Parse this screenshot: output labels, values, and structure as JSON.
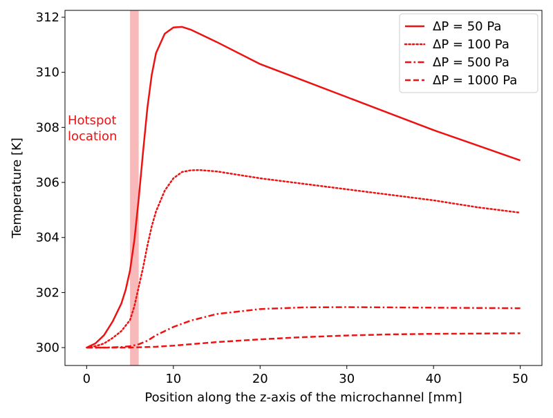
{
  "chart_data": {
    "type": "line",
    "title": "",
    "xlabel": "Position along the z-axis of the microchannel [mm]",
    "ylabel": "Temperature [K]",
    "xlim": [
      -2.5,
      52.5
    ],
    "ylim": [
      299.35,
      312.25
    ],
    "xticks": [
      0,
      10,
      20,
      30,
      40,
      50
    ],
    "yticks": [
      300,
      302,
      304,
      306,
      308,
      310,
      312
    ],
    "line_color": "#ee1111",
    "band": {
      "x_start": 5,
      "x_end": 6,
      "color": "#f08080",
      "label": "Hotspot\nlocation"
    },
    "legend_position": "top-right",
    "series": [
      {
        "name": "ΔP = 50 Pa",
        "style": "solid",
        "x": [
          0,
          1,
          2,
          3,
          4,
          4.5,
          5,
          5.5,
          6,
          6.5,
          7,
          7.5,
          8,
          9,
          10,
          11,
          12,
          15,
          20,
          25,
          30,
          35,
          40,
          45,
          50
        ],
        "y": [
          300.0,
          300.15,
          300.45,
          300.95,
          301.6,
          302.1,
          302.8,
          303.9,
          305.4,
          307.1,
          308.7,
          309.9,
          310.7,
          311.4,
          311.63,
          311.65,
          311.55,
          311.1,
          310.3,
          309.7,
          309.1,
          308.5,
          307.9,
          307.35,
          306.8
        ]
      },
      {
        "name": "ΔP = 100 Pa",
        "style": "dotted",
        "x": [
          0,
          1,
          2,
          3,
          4,
          5,
          5.5,
          6,
          6.5,
          7,
          7.5,
          8,
          9,
          10,
          11,
          12,
          13,
          15,
          20,
          25,
          30,
          35,
          40,
          45,
          50
        ],
        "y": [
          300.0,
          300.05,
          300.15,
          300.35,
          300.6,
          301.0,
          301.5,
          302.2,
          302.9,
          303.7,
          304.4,
          304.95,
          305.7,
          306.15,
          306.38,
          306.44,
          306.45,
          306.4,
          306.15,
          305.95,
          305.75,
          305.55,
          305.35,
          305.1,
          304.9
        ]
      },
      {
        "name": "ΔP = 500 Pa",
        "style": "dashdot",
        "x": [
          0,
          2,
          4,
          5,
          6,
          7,
          8,
          10,
          12,
          15,
          20,
          25,
          30,
          35,
          40,
          45,
          50
        ],
        "y": [
          300.0,
          300.0,
          300.02,
          300.05,
          300.12,
          300.25,
          300.45,
          300.75,
          300.98,
          301.22,
          301.4,
          301.46,
          301.47,
          301.46,
          301.45,
          301.44,
          301.43
        ]
      },
      {
        "name": "ΔP = 1000 Pa",
        "style": "dashed",
        "x": [
          0,
          5,
          8,
          10,
          15,
          20,
          25,
          30,
          35,
          40,
          45,
          50
        ],
        "y": [
          300.0,
          300.0,
          300.03,
          300.07,
          300.2,
          300.3,
          300.38,
          300.44,
          300.48,
          300.5,
          300.51,
          300.52
        ]
      }
    ]
  }
}
